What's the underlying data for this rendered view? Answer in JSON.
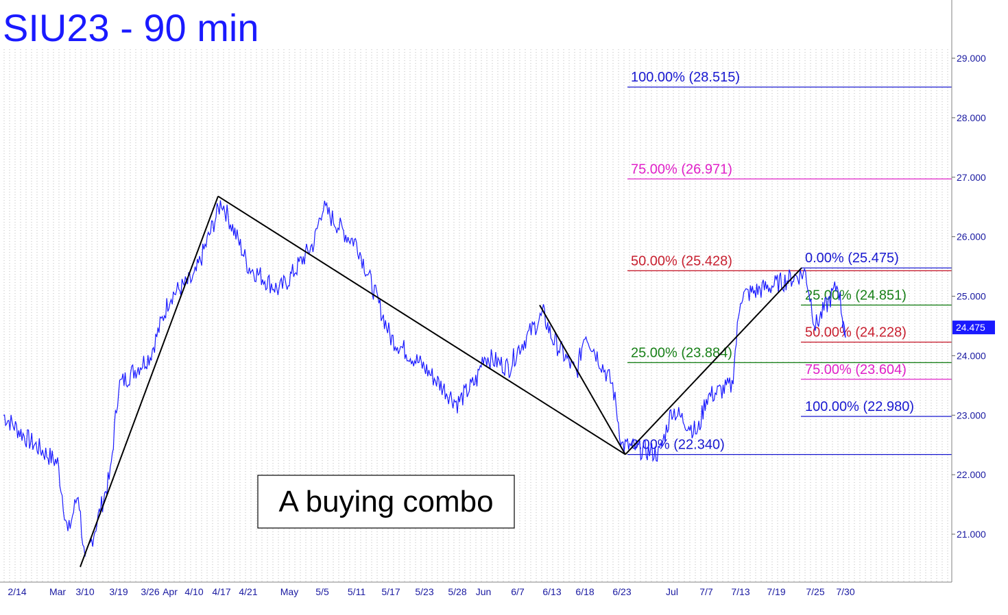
{
  "chart_data": {
    "type": "line",
    "title": "SIU23 - 90 min",
    "annotation": "A buying combo",
    "last_price_label": "24.475",
    "ylim": [
      20.3,
      29.3
    ],
    "y_ticks": [
      "21.000",
      "22.000",
      "23.000",
      "24.000",
      "25.000",
      "26.000",
      "27.000",
      "28.000",
      "29.000"
    ],
    "x_ticks": [
      "2/14",
      "Mar",
      "3/10",
      "3/19",
      "3/26",
      "Apr",
      "4/10",
      "4/17",
      "4/21",
      "May",
      "5/5",
      "5/11",
      "5/17",
      "5/23",
      "5/28",
      "Jun",
      "6/7",
      "6/13",
      "6/18",
      "6/23",
      "Jul",
      "7/7",
      "7/13",
      "7/19",
      "7/25",
      "7/30"
    ],
    "series": [
      {
        "values": [
          [
            "2/14",
            23.0
          ],
          [
            "2/14",
            22.6
          ],
          [
            "Mar",
            22.2
          ],
          [
            "Mar",
            21.0
          ],
          [
            "Mar",
            21.7
          ],
          [
            "3/10",
            20.5
          ],
          [
            "3/10",
            22.0
          ],
          [
            "3/19",
            23.5
          ],
          [
            "3/26",
            24.0
          ],
          [
            "Apr",
            25.0
          ],
          [
            "4/10",
            25.3
          ],
          [
            "4/17",
            26.6
          ],
          [
            "4/17",
            25.8
          ],
          [
            "4/21",
            25.5
          ],
          [
            "4/21",
            25.1
          ],
          [
            "May",
            25.3
          ],
          [
            "May",
            25.9
          ],
          [
            "5/5",
            26.5
          ],
          [
            "5/5",
            26.0
          ],
          [
            "5/11",
            25.9
          ],
          [
            "5/11",
            24.7
          ],
          [
            "5/17",
            24.3
          ],
          [
            "5/23",
            23.8
          ],
          [
            "5/28",
            23.2
          ],
          [
            "5/28",
            23.6
          ],
          [
            "Jun",
            24.0
          ],
          [
            "Jun",
            23.8
          ],
          [
            "6/7",
            24.1
          ],
          [
            "6/7",
            24.7
          ],
          [
            "6/13",
            24.3
          ],
          [
            "6/13",
            23.7
          ],
          [
            "6/18",
            24.4
          ],
          [
            "6/18",
            23.5
          ],
          [
            "6/23",
            22.5
          ],
          [
            "6/23",
            22.35
          ],
          [
            "Jul",
            23.1
          ],
          [
            "Jul",
            22.7
          ],
          [
            "7/7",
            23.3
          ],
          [
            "7/7",
            23.5
          ],
          [
            "7/13",
            25.0
          ],
          [
            "7/19",
            25.2
          ],
          [
            "7/19",
            25.4
          ],
          [
            "7/25",
            24.5
          ],
          [
            "7/25",
            25.2
          ],
          [
            "7/30",
            24.3
          ],
          [
            "7/30",
            24.475
          ]
        ]
      }
    ],
    "trend_lines": [
      {
        "from": [
          "3/10",
          20.45
        ],
        "to": [
          "4/17",
          26.68
        ]
      },
      {
        "from": [
          "4/17",
          26.68
        ],
        "to": [
          "6/23",
          22.34
        ]
      },
      {
        "from": [
          "6/7",
          24.85
        ],
        "to": [
          "6/23",
          22.34
        ]
      },
      {
        "from": [
          "6/23",
          22.34
        ],
        "to": [
          "7/25",
          25.475
        ]
      }
    ],
    "fib_levels": [
      {
        "label": "100.00% (28.515)",
        "value": 28.515,
        "color": "#1818d0"
      },
      {
        "label": "75.00% (26.971)",
        "value": 26.971,
        "color": "#e020c8"
      },
      {
        "label": "50.00% (25.428)",
        "value": 25.428,
        "color": "#c82030"
      },
      {
        "label": "25.00% (23.884)",
        "value": 23.884,
        "color": "#188018"
      },
      {
        "label": "0.00% (22.340)",
        "value": 22.34,
        "color": "#1818d0"
      },
      {
        "label": "0.00% (25.475)",
        "value": 25.475,
        "color": "#1818d0"
      },
      {
        "label": "25.00% (24.851)",
        "value": 24.851,
        "color": "#188018"
      },
      {
        "label": "50.00% (24.228)",
        "value": 24.228,
        "color": "#c82030"
      },
      {
        "label": "75.00% (23.604)",
        "value": 23.604,
        "color": "#e020c8"
      },
      {
        "label": "100.00% (22.980)",
        "value": 22.98,
        "color": "#1818d0"
      }
    ],
    "colors": {
      "price": "#1a1aff",
      "title": "#1a1aff",
      "grid": "#b8b8b8",
      "trend": "#000000"
    },
    "grid": true
  }
}
